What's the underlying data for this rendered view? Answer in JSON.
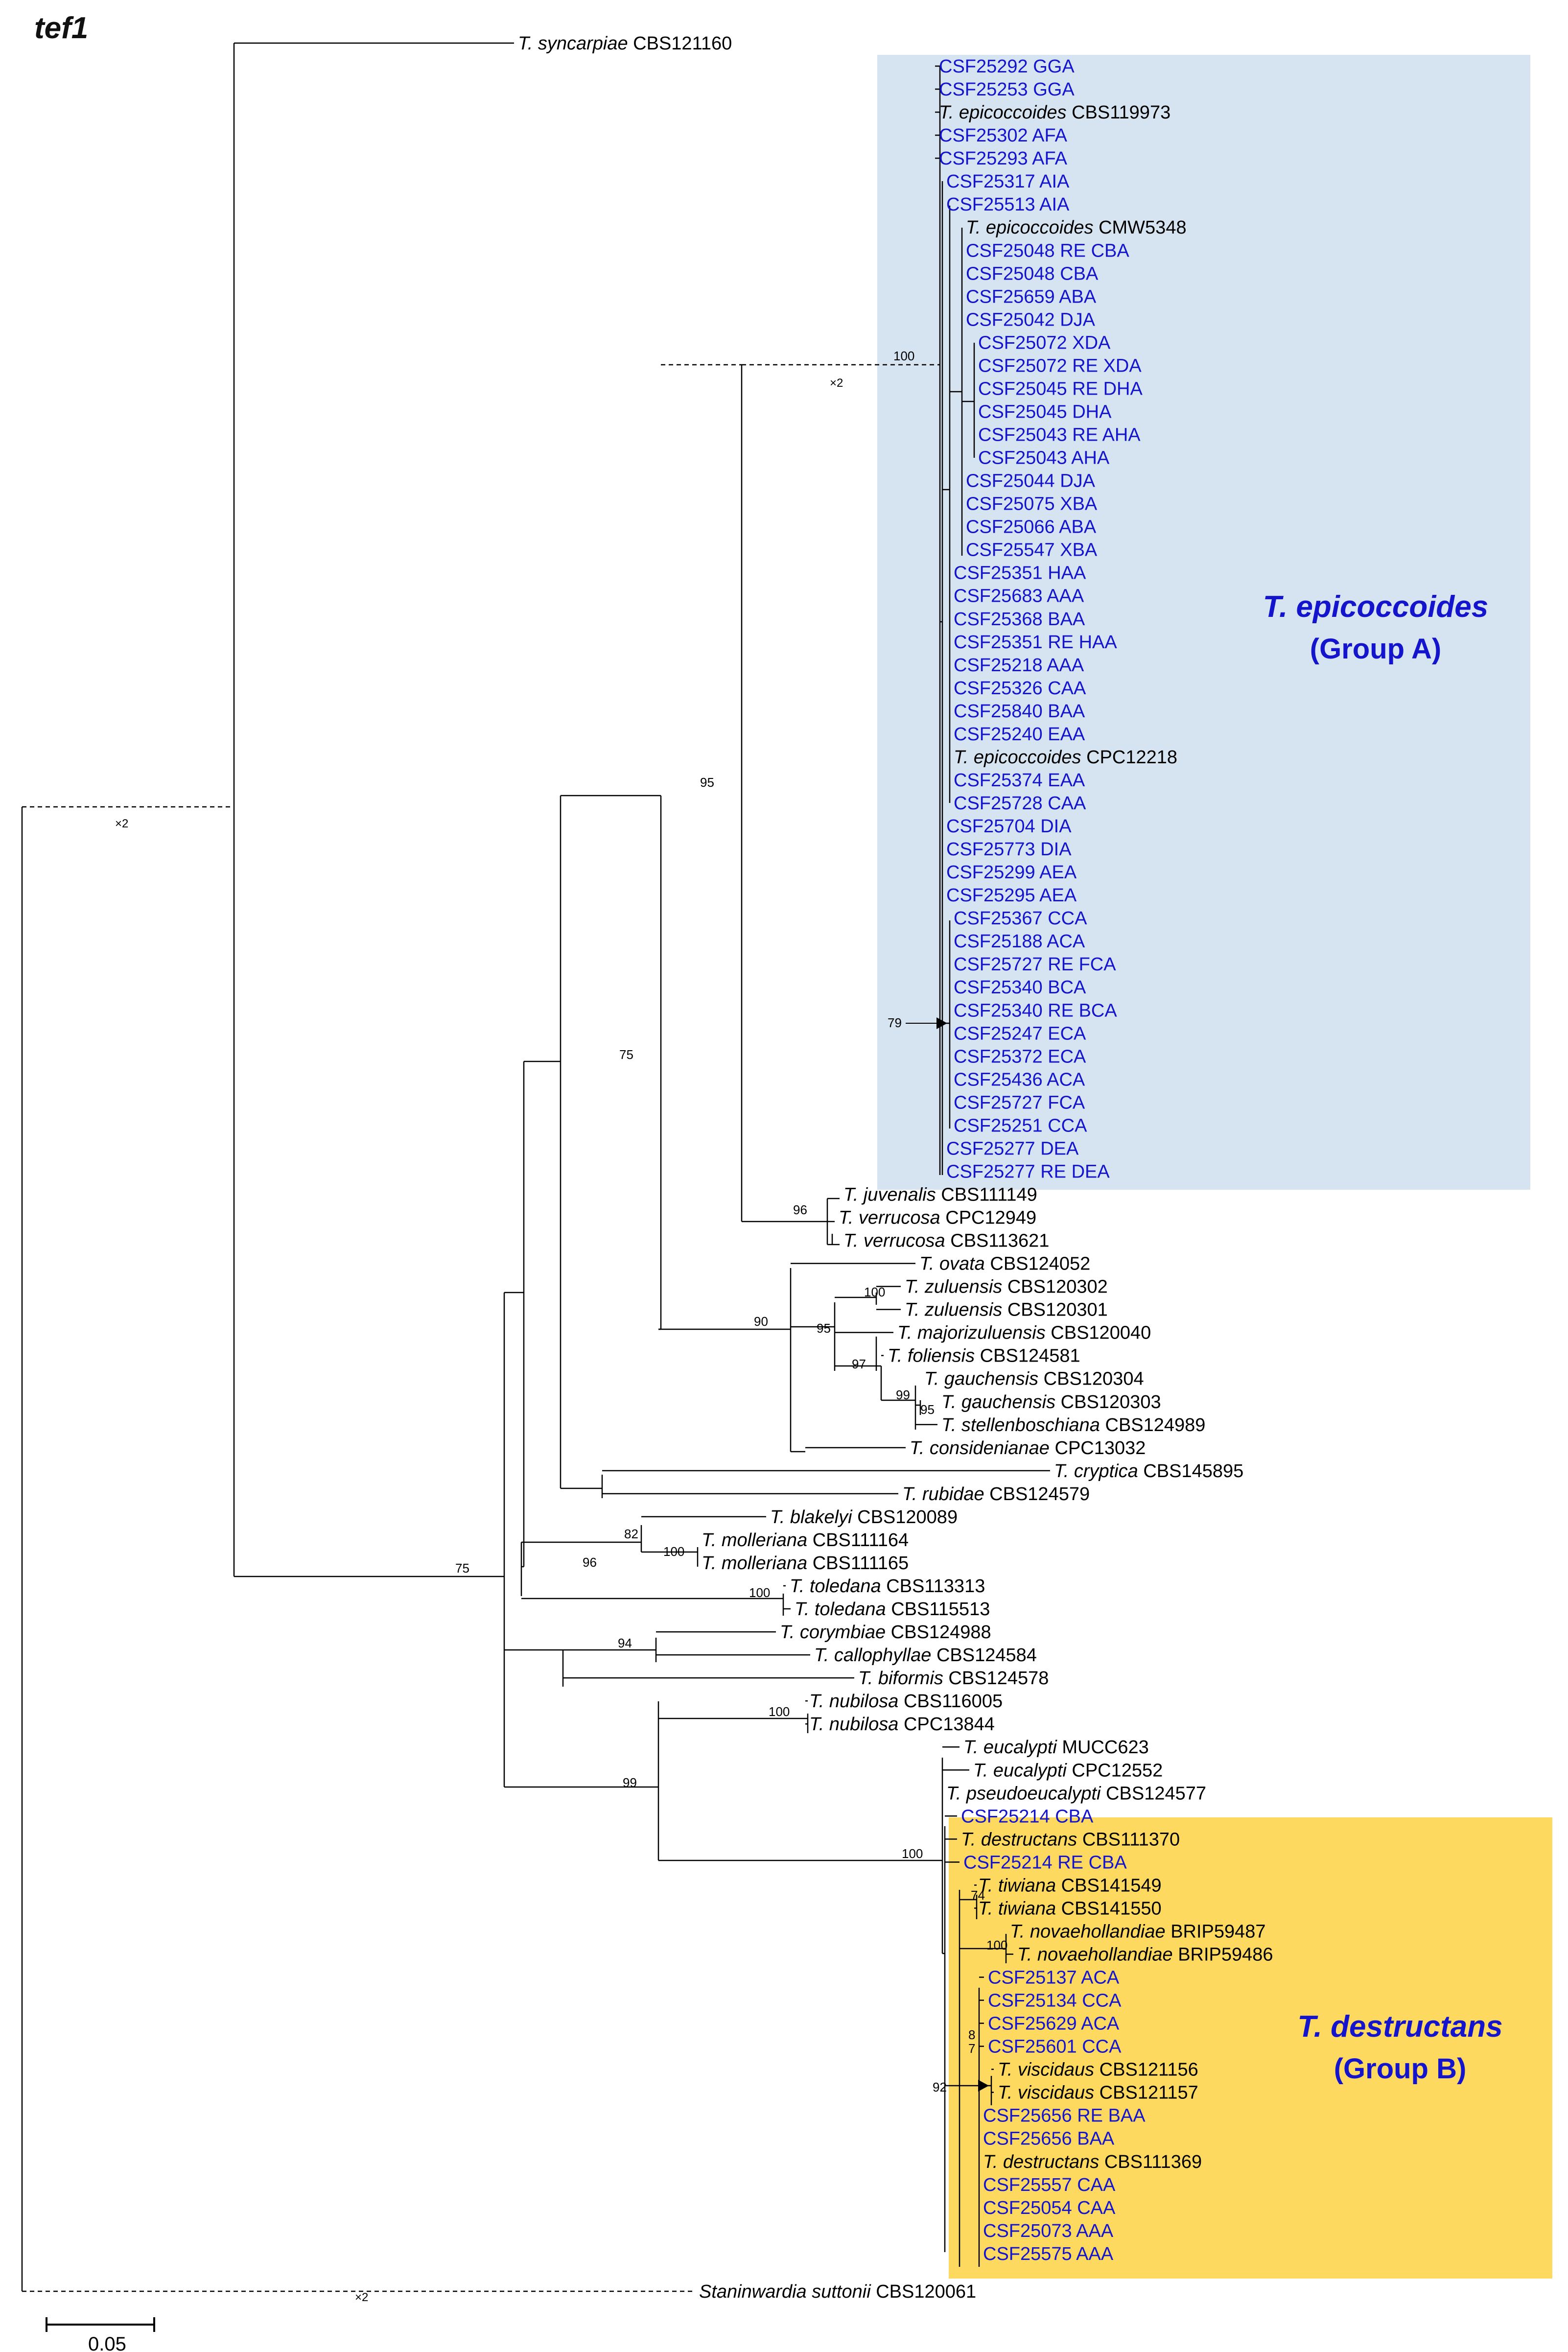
{
  "title": "tef1",
  "colors": {
    "blue_text": "#1414cc",
    "black_text": "#000000",
    "group_a_fill": "#d6e4f2",
    "group_b_fill": "#fdd960",
    "branch": "#000000"
  },
  "groups": [
    {
      "key": "A",
      "name": "T. epicoccoides",
      "label": "(Group A)"
    },
    {
      "key": "B",
      "name": "T. destructans",
      "label": "(Group B)"
    }
  ],
  "scale_bar": {
    "label": "0.05",
    "length_units": 0.05
  },
  "break_marker": "×2",
  "leaves": [
    {
      "species": "T. syncarpiae",
      "code": "CBS121160",
      "color": "black"
    },
    {
      "text": "CSF25292 GGA",
      "color": "blue"
    },
    {
      "text": "CSF25253 GGA",
      "color": "blue"
    },
    {
      "species": "T. epicoccoides",
      "code": "CBS119973",
      "color": "black"
    },
    {
      "text": "CSF25302 AFA",
      "color": "blue"
    },
    {
      "text": "CSF25293 AFA",
      "color": "blue"
    },
    {
      "text": "CSF25317 AIA",
      "color": "blue"
    },
    {
      "text": "CSF25513 AIA",
      "color": "blue"
    },
    {
      "species": "T. epicoccoides",
      "code": "CMW5348",
      "color": "black"
    },
    {
      "text": "CSF25048 RE CBA",
      "color": "blue"
    },
    {
      "text": "CSF25048 CBA",
      "color": "blue"
    },
    {
      "text": "CSF25659 ABA",
      "color": "blue"
    },
    {
      "text": "CSF25042 DJA",
      "color": "blue"
    },
    {
      "text": "CSF25072 XDA",
      "color": "blue"
    },
    {
      "text": "CSF25072 RE XDA",
      "color": "blue"
    },
    {
      "text": "CSF25045 RE DHA",
      "color": "blue"
    },
    {
      "text": "CSF25045 DHA",
      "color": "blue"
    },
    {
      "text": "CSF25043 RE AHA",
      "color": "blue"
    },
    {
      "text": "CSF25043 AHA",
      "color": "blue"
    },
    {
      "text": "CSF25044 DJA",
      "color": "blue"
    },
    {
      "text": "CSF25075 XBA",
      "color": "blue"
    },
    {
      "text": "CSF25066 ABA",
      "color": "blue"
    },
    {
      "text": "CSF25547 XBA",
      "color": "blue"
    },
    {
      "text": "CSF25351 HAA",
      "color": "blue"
    },
    {
      "text": "CSF25683 AAA",
      "color": "blue"
    },
    {
      "text": "CSF25368 BAA",
      "color": "blue"
    },
    {
      "text": "CSF25351 RE HAA",
      "color": "blue"
    },
    {
      "text": "CSF25218 AAA",
      "color": "blue"
    },
    {
      "text": "CSF25326 CAA",
      "color": "blue"
    },
    {
      "text": "CSF25840 BAA",
      "color": "blue"
    },
    {
      "text": "CSF25240 EAA",
      "color": "blue"
    },
    {
      "species": "T. epicoccoides",
      "code": "CPC12218",
      "color": "black"
    },
    {
      "text": "CSF25374 EAA",
      "color": "blue"
    },
    {
      "text": "CSF25728 CAA",
      "color": "blue"
    },
    {
      "text": "CSF25704 DIA",
      "color": "blue"
    },
    {
      "text": "CSF25773 DIA",
      "color": "blue"
    },
    {
      "text": "CSF25299 AEA",
      "color": "blue"
    },
    {
      "text": "CSF25295 AEA",
      "color": "blue"
    },
    {
      "text": "CSF25367 CCA",
      "color": "blue"
    },
    {
      "text": "CSF25188 ACA",
      "color": "blue"
    },
    {
      "text": "CSF25727 RE FCA",
      "color": "blue"
    },
    {
      "text": "CSF25340 BCA",
      "color": "blue"
    },
    {
      "text": "CSF25340 RE BCA",
      "color": "blue"
    },
    {
      "text": "CSF25247 ECA",
      "color": "blue"
    },
    {
      "text": "CSF25372 ECA",
      "color": "blue"
    },
    {
      "text": "CSF25436 ACA",
      "color": "blue"
    },
    {
      "text": "CSF25727 FCA",
      "color": "blue"
    },
    {
      "text": "CSF25251 CCA",
      "color": "blue"
    },
    {
      "text": "CSF25277 DEA",
      "color": "blue"
    },
    {
      "text": "CSF25277 RE DEA",
      "color": "blue"
    },
    {
      "species": "T. juvenalis",
      "code": "CBS111149",
      "color": "black"
    },
    {
      "species": "T. verrucosa",
      "code": "CPC12949",
      "color": "black"
    },
    {
      "species": "T. verrucosa",
      "code": "CBS113621",
      "color": "black"
    },
    {
      "species": "T. ovata",
      "code": "CBS124052",
      "color": "black"
    },
    {
      "species": "T. zuluensis",
      "code": "CBS120302",
      "color": "black"
    },
    {
      "species": "T. zuluensis",
      "code": "CBS120301",
      "color": "black"
    },
    {
      "species": "T. majorizuluensis",
      "code": "CBS120040",
      "color": "black"
    },
    {
      "species": "T. foliensis",
      "code": "CBS124581",
      "color": "black"
    },
    {
      "species": "T. gauchensis",
      "code": "CBS120304",
      "color": "black"
    },
    {
      "species": "T. gauchensis",
      "code": "CBS120303",
      "color": "black"
    },
    {
      "species": "T. stellenboschiana",
      "code": "CBS124989",
      "color": "black"
    },
    {
      "species": "T. considenianae",
      "code": "CPC13032",
      "color": "black"
    },
    {
      "species": "T. cryptica",
      "code": "CBS145895",
      "color": "black"
    },
    {
      "species": "T. rubidae",
      "code": "CBS124579",
      "color": "black"
    },
    {
      "species": "T. blakelyi",
      "code": "CBS120089",
      "color": "black"
    },
    {
      "species": "T. molleriana",
      "code": "CBS111164",
      "color": "black"
    },
    {
      "species": "T. molleriana",
      "code": "CBS111165",
      "color": "black"
    },
    {
      "species": "T. toledana",
      "code": "CBS113313",
      "color": "black"
    },
    {
      "species": "T. toledana",
      "code": "CBS115513",
      "color": "black"
    },
    {
      "species": "T. corymbiae",
      "code": "CBS124988",
      "color": "black"
    },
    {
      "species": "T. callophyllae",
      "code": "CBS124584",
      "color": "black"
    },
    {
      "species": "T. biformis",
      "code": "CBS124578",
      "color": "black"
    },
    {
      "species": "T. nubilosa",
      "code": "CBS116005",
      "color": "black"
    },
    {
      "species": "T. nubilosa",
      "code": "CPC13844",
      "color": "black"
    },
    {
      "species": "T. eucalypti",
      "code": "MUCC623",
      "color": "black"
    },
    {
      "species": "T. eucalypti",
      "code": "CPC12552",
      "color": "black"
    },
    {
      "species": "T. pseudoeucalypti",
      "code": "CBS124577",
      "color": "black"
    },
    {
      "text": "CSF25214 CBA",
      "color": "blue"
    },
    {
      "species": "T. destructans",
      "code": "CBS111370",
      "color": "black"
    },
    {
      "text": "CSF25214 RE CBA",
      "color": "blue"
    },
    {
      "species": "T. tiwiana",
      "code": "CBS141549",
      "color": "black"
    },
    {
      "species": "T. tiwiana",
      "code": "CBS141550",
      "color": "black"
    },
    {
      "species": "T. novaehollandiae",
      "code": "BRIP59487",
      "color": "black"
    },
    {
      "species": "T. novaehollandiae",
      "code": "BRIP59486",
      "color": "black"
    },
    {
      "text": "CSF25137 ACA",
      "color": "blue"
    },
    {
      "text": "CSF25134 CCA",
      "color": "blue"
    },
    {
      "text": "CSF25629 ACA",
      "color": "blue"
    },
    {
      "text": "CSF25601 CCA",
      "color": "blue"
    },
    {
      "species": "T. viscidaus",
      "code": "CBS121156",
      "color": "black"
    },
    {
      "species": "T. viscidaus",
      "code": "CBS121157",
      "color": "black"
    },
    {
      "text": "CSF25656 RE BAA",
      "color": "blue"
    },
    {
      "text": "CSF25656 BAA",
      "color": "blue"
    },
    {
      "species": "T. destructans",
      "code": "CBS111369",
      "color": "black"
    },
    {
      "text": "CSF25557 CAA",
      "color": "blue"
    },
    {
      "text": "CSF25054 CAA",
      "color": "blue"
    },
    {
      "text": "CSF25073 AAA",
      "color": "blue"
    },
    {
      "text": "CSF25575 AAA",
      "color": "blue"
    },
    {
      "species": "Staninwardia suttonii",
      "code": "CBS120061",
      "color": "black"
    }
  ],
  "support_values": [
    {
      "node": "group-a-crown",
      "value": "100"
    },
    {
      "node": "group-a-plus-juvenalis",
      "value": "95"
    },
    {
      "node": "juvenalis-verrucosa",
      "value": "96"
    },
    {
      "node": "epicoccoides-to-ovata-clade",
      "value": "75"
    },
    {
      "node": "ovata-clade",
      "value": "90"
    },
    {
      "node": "zuluensis-majorizuluensis",
      "value": "95"
    },
    {
      "node": "zuluensis-pair",
      "value": "100"
    },
    {
      "node": "foliensis-gauchensis",
      "value": "97"
    },
    {
      "node": "gauchensis-stellenboschiana",
      "value": "99"
    },
    {
      "node": "gauchensis-pair",
      "value": "95"
    },
    {
      "node": "blakelyi-molleriana",
      "value": "82"
    },
    {
      "node": "blakelyi-toledana",
      "value": "96"
    },
    {
      "node": "molleriana-pair",
      "value": "100"
    },
    {
      "node": "toledana-pair",
      "value": "100"
    },
    {
      "node": "ingroup",
      "value": "75"
    },
    {
      "node": "corymbiae-callophyllae",
      "value": "94"
    },
    {
      "node": "nubilosa-eucalypti",
      "value": "99"
    },
    {
      "node": "nubilosa-pair",
      "value": "100"
    },
    {
      "node": "eucalypti-destructans",
      "value": "100"
    },
    {
      "node": "tiwiana-pair",
      "value": "74"
    },
    {
      "node": "novaehollandiae-pair",
      "value": "100"
    },
    {
      "node": "group-b-csf-81",
      "value": "8"
    },
    {
      "node": "group-b-csf-72",
      "value": "7"
    },
    {
      "node": "group-b-crown",
      "value": "92"
    },
    {
      "node": "group-a-subclade",
      "value": "79"
    }
  ]
}
